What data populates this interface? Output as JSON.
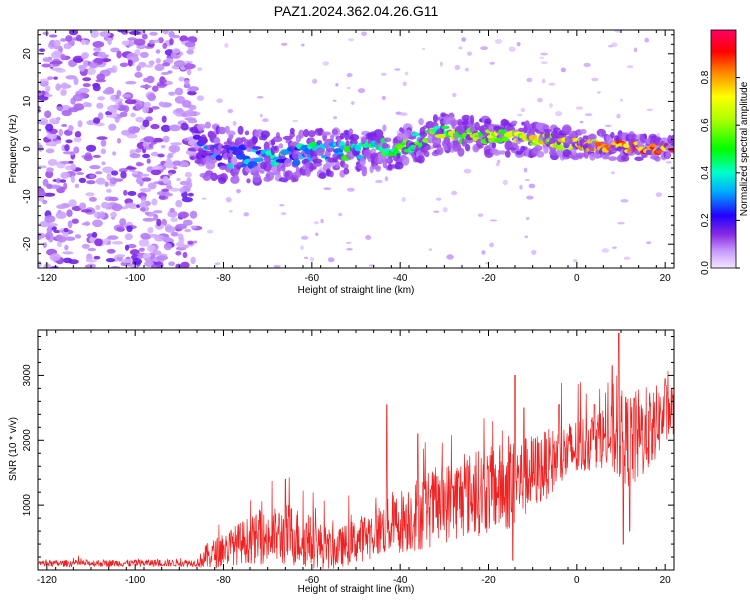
{
  "title": "PAZ1.2024.362.04.26.G11",
  "chart_data": [
    {
      "type": "heatmap",
      "xlabel": "Height of straight line (km)",
      "ylabel": "Frequency (Hz)",
      "xlim": [
        -122,
        22
      ],
      "ylim": [
        -25,
        25
      ],
      "xticks": [
        -120,
        -100,
        -80,
        -60,
        -40,
        -20,
        0,
        20
      ],
      "yticks": [
        -20,
        -10,
        0,
        10,
        20
      ],
      "colorbar": {
        "label": "Normalized spectral amplitude",
        "ticks": [
          0.0,
          0.2,
          0.4,
          0.6,
          0.8
        ],
        "range": [
          0,
          1
        ],
        "colormap": "rainbow"
      },
      "ridge": [
        {
          "x": -86,
          "y": 0.5
        },
        {
          "x": -80,
          "y": -1.5
        },
        {
          "x": -70,
          "y": -1.5
        },
        {
          "x": -60,
          "y": -1
        },
        {
          "x": -50,
          "y": -0.5
        },
        {
          "x": -40,
          "y": 0.5
        },
        {
          "x": -30,
          "y": 3.5
        },
        {
          "x": -20,
          "y": 2.5
        },
        {
          "x": -10,
          "y": 2
        },
        {
          "x": 0,
          "y": 1
        },
        {
          "x": 10,
          "y": 0.5
        },
        {
          "x": 22,
          "y": 0
        }
      ]
    },
    {
      "type": "line",
      "xlabel": "Height of straight line (km)",
      "ylabel": "SNR (10 * v/v)",
      "xlim": [
        -122,
        22
      ],
      "ylim": [
        0,
        3700
      ],
      "xticks": [
        -120,
        -100,
        -80,
        -60,
        -40,
        -20,
        0,
        20
      ],
      "yticks": [
        1000,
        2000,
        3000
      ],
      "color": "#ee2222",
      "envelope": [
        {
          "x": -122,
          "mean": 100,
          "amp": 50
        },
        {
          "x": -86,
          "mean": 110,
          "amp": 60
        },
        {
          "x": -84,
          "mean": 200,
          "amp": 200
        },
        {
          "x": -75,
          "mean": 450,
          "amp": 350
        },
        {
          "x": -65,
          "mean": 550,
          "amp": 500
        },
        {
          "x": -55,
          "mean": 300,
          "amp": 300
        },
        {
          "x": -45,
          "mean": 600,
          "amp": 400
        },
        {
          "x": -35,
          "mean": 900,
          "amp": 600
        },
        {
          "x": -25,
          "mean": 1150,
          "amp": 650
        },
        {
          "x": -15,
          "mean": 1300,
          "amp": 700
        },
        {
          "x": -5,
          "mean": 1700,
          "amp": 500
        },
        {
          "x": 5,
          "mean": 2050,
          "amp": 450
        },
        {
          "x": 13,
          "mean": 2000,
          "amp": 800
        },
        {
          "x": 22,
          "mean": 2500,
          "amp": 400
        }
      ],
      "peaks": [
        {
          "x": -66,
          "y": 1400
        },
        {
          "x": -43,
          "y": 2550
        },
        {
          "x": -36,
          "y": 2100
        },
        {
          "x": -14,
          "y": 3000
        },
        {
          "x": -12,
          "y": 2500
        },
        {
          "x": -4,
          "y": 2550
        },
        {
          "x": 4,
          "y": 2550
        },
        {
          "x": 8,
          "y": 3150
        },
        {
          "x": 9.5,
          "y": 3650
        },
        {
          "x": 13,
          "y": 2650
        },
        {
          "x": 20,
          "y": 2950
        }
      ],
      "dips": [
        {
          "x": -14.5,
          "y": 150
        },
        {
          "x": 10.5,
          "y": 400
        },
        {
          "x": 12,
          "y": 600
        },
        {
          "x": 17,
          "y": 1700
        }
      ]
    }
  ]
}
